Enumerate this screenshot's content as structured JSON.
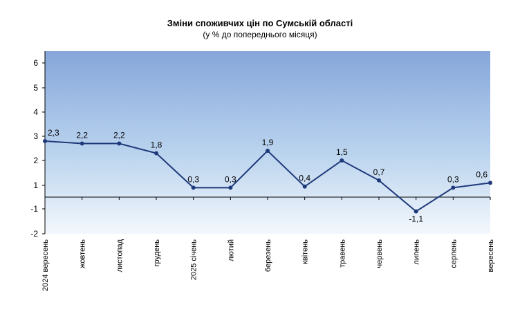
{
  "chart_data": {
    "type": "line",
    "title": "Зміни споживчих цін по Сумській області",
    "subtitle": "(у % до попереднього місяця)",
    "categories": [
      "2024 вересень",
      "жовтень",
      "листопад",
      "грудень",
      "2025 січень",
      "лютий",
      "березень",
      "квітень",
      "травень",
      "червень",
      "липень",
      "серпень",
      "вересень"
    ],
    "series": [
      {
        "values": [
          2.3,
          2.2,
          2.2,
          1.8,
          0.3,
          0.3,
          1.9,
          0.4,
          1.5,
          0.7,
          -1.1,
          0.3,
          0.6
        ],
        "labels": [
          "2,3",
          "2,2",
          "2,2",
          "1,8",
          "0,3",
          "0,3",
          "1,9",
          "0,4",
          "1,5",
          "0,7",
          "-1,1",
          "0,3",
          "0,6"
        ],
        "color": "#1f3a7a"
      }
    ],
    "y_ticks": [
      {
        "value": -2,
        "label": "-2"
      },
      {
        "value": -1,
        "label": "-1"
      },
      {
        "value": 1,
        "label": "1"
      },
      {
        "value": 2,
        "label": "2"
      },
      {
        "value": 3,
        "label": "3"
      },
      {
        "value": 4,
        "label": "4"
      },
      {
        "value": 5,
        "label": "5"
      },
      {
        "value": 6,
        "label": "6"
      }
    ],
    "axis_break_note": "chart plots value with offset: positive values shifted +0.5 above baseline",
    "ylim": [
      -2,
      6.5
    ],
    "grid": false,
    "legend": "none",
    "colors": {
      "bg_top": "#86a6da",
      "bg_mid": "#b9d3ee",
      "bg_bottom": "#f3f7fc",
      "line": "#1f3a7a",
      "axis": "#000000"
    }
  }
}
